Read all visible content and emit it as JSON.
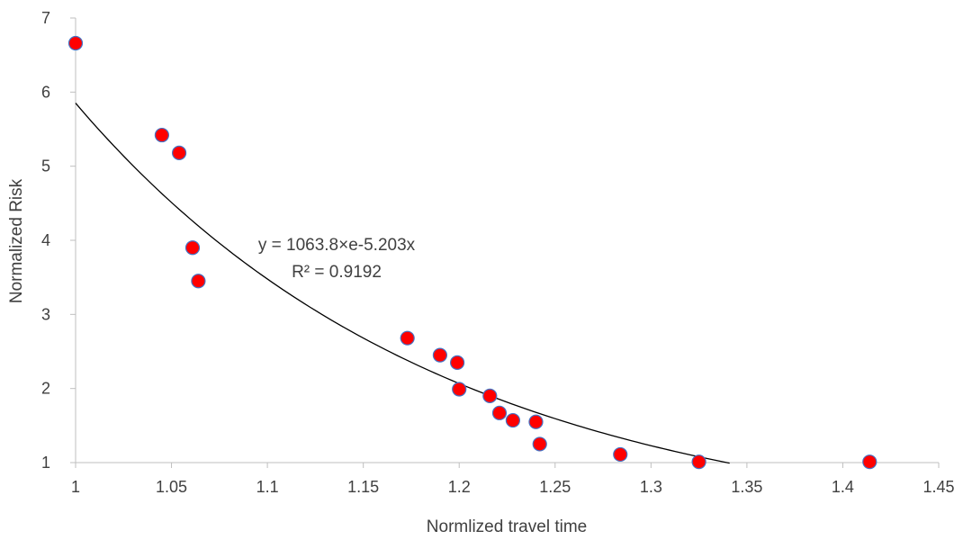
{
  "chart_data": {
    "type": "scatter",
    "title": "",
    "xlabel": "Normlized travel time",
    "ylabel": "Normalized Risk",
    "xlim": [
      1,
      1.45
    ],
    "ylim": [
      1,
      7
    ],
    "x_ticks": [
      1,
      1.05,
      1.1,
      1.15,
      1.2,
      1.25,
      1.3,
      1.35,
      1.4,
      1.45
    ],
    "y_ticks": [
      1,
      2,
      3,
      4,
      5,
      6,
      7
    ],
    "x_tick_labels": [
      "1",
      "1.05",
      "1.1",
      "1.15",
      "1.2",
      "1.25",
      "1.3",
      "1.35",
      "1.4",
      "1.45"
    ],
    "y_tick_labels": [
      "1",
      "2",
      "3",
      "4",
      "5",
      "6",
      "7"
    ],
    "grid": false,
    "legend": "none",
    "series": [
      {
        "marker_color": "#ff0000",
        "marker_edge_color": "#4472c4",
        "points": [
          {
            "x": 1.0,
            "y": 6.66
          },
          {
            "x": 1.045,
            "y": 5.42
          },
          {
            "x": 1.054,
            "y": 5.18
          },
          {
            "x": 1.061,
            "y": 3.9
          },
          {
            "x": 1.064,
            "y": 3.45
          },
          {
            "x": 1.173,
            "y": 2.68
          },
          {
            "x": 1.19,
            "y": 2.45
          },
          {
            "x": 1.199,
            "y": 2.35
          },
          {
            "x": 1.2,
            "y": 1.99
          },
          {
            "x": 1.216,
            "y": 1.9
          },
          {
            "x": 1.221,
            "y": 1.67
          },
          {
            "x": 1.228,
            "y": 1.57
          },
          {
            "x": 1.24,
            "y": 1.55
          },
          {
            "x": 1.242,
            "y": 1.25
          },
          {
            "x": 1.284,
            "y": 1.11
          },
          {
            "x": 1.325,
            "y": 1.01
          },
          {
            "x": 1.414,
            "y": 1.01
          }
        ]
      }
    ],
    "trendline": {
      "type": "exponential",
      "a": 1063.8,
      "b": -5.203,
      "x_range": [
        1.0,
        1.341
      ],
      "color": "#000000",
      "equation_text": "y = 1063.8×e-5.203x",
      "r2_text": "R² = 0.9192"
    },
    "axis_color": "#bfbfbf"
  }
}
